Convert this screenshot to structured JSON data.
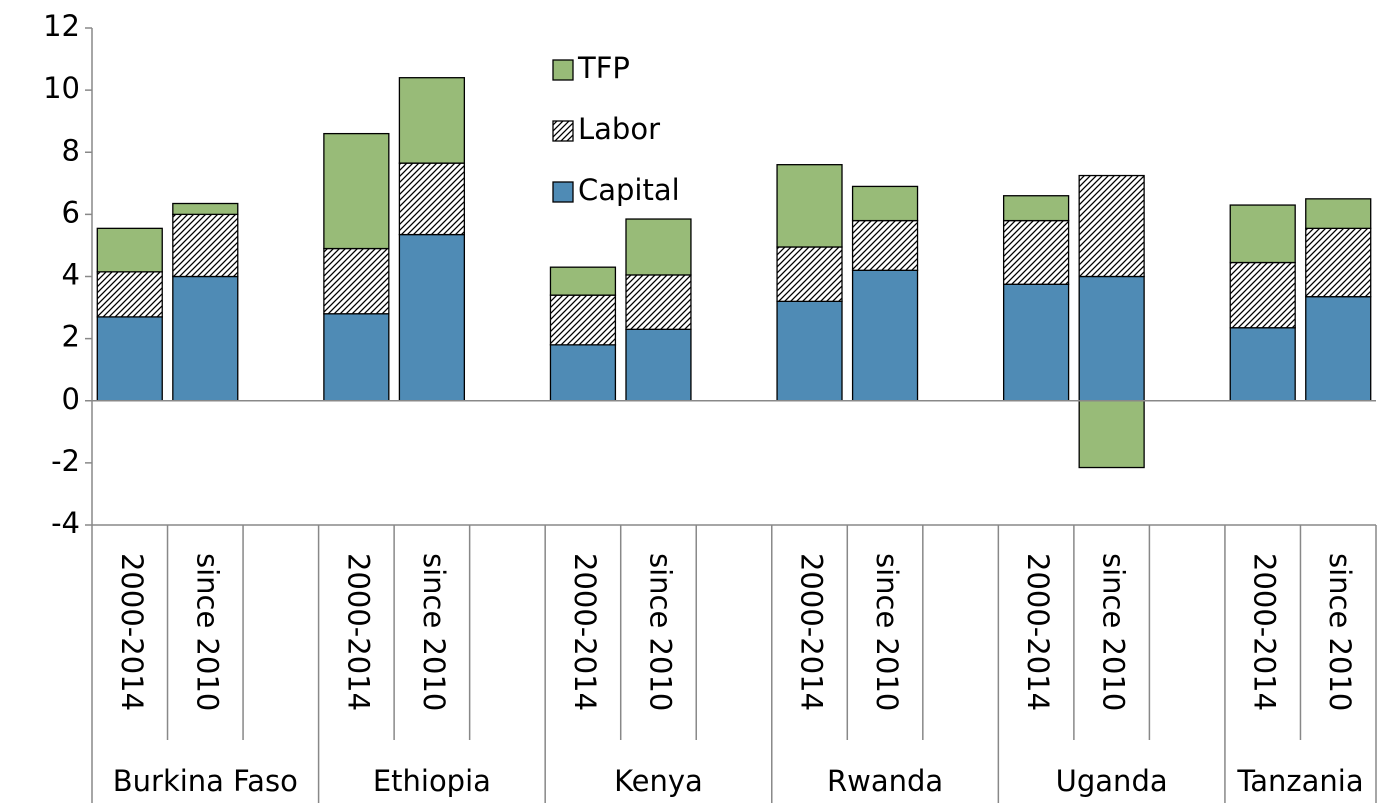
{
  "chart_data": {
    "type": "stacked_bar",
    "categories": [
      "2000-2014",
      "since 2010",
      null,
      "2000-2014",
      "since 2010",
      null,
      "2000-2014",
      "since 2010",
      null,
      "2000-2014",
      "since 2010",
      null,
      "2000-2014",
      "since 2010",
      null,
      "2000-2014",
      "since 2010"
    ],
    "groups": [
      "Burkina Faso",
      "Ethiopia",
      "Kenya",
      "Rwanda",
      "Uganda",
      "Tanzania"
    ],
    "series": [
      {
        "name": "Capital",
        "color": "#4f8bb5",
        "values": [
          2.7,
          4.0,
          null,
          2.8,
          5.35,
          null,
          1.8,
          2.3,
          null,
          3.2,
          4.2,
          null,
          3.75,
          4.0,
          null,
          2.35,
          3.35
        ]
      },
      {
        "name": "Labor",
        "color": "#ffffff",
        "hatch": true,
        "values": [
          1.45,
          2.0,
          null,
          2.1,
          2.3,
          null,
          1.6,
          1.75,
          null,
          1.75,
          1.6,
          null,
          2.05,
          3.25,
          null,
          2.1,
          2.2
        ]
      },
      {
        "name": "TFP",
        "color": "#98bb78",
        "values": [
          1.4,
          0.35,
          null,
          3.7,
          2.75,
          null,
          0.9,
          1.8,
          null,
          2.65,
          1.1,
          null,
          0.8,
          -2.15,
          null,
          1.85,
          0.95
        ]
      }
    ],
    "ylim": [
      -4,
      12
    ],
    "yticks": [
      -4,
      -2,
      0,
      2,
      4,
      6,
      8,
      10,
      12
    ],
    "legend": "top"
  }
}
